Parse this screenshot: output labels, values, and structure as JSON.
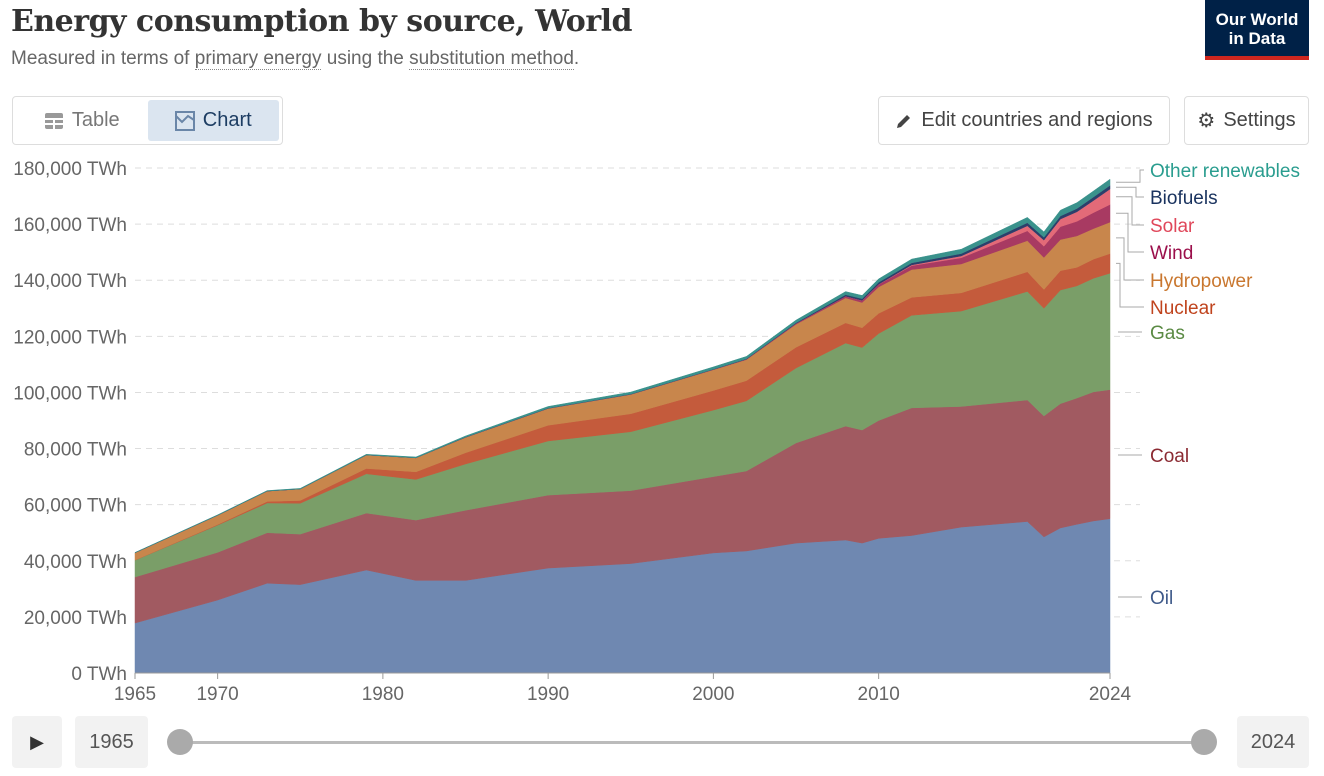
{
  "header": {
    "title": "Energy consumption by source, World",
    "subtitle_pre": "Measured in terms of ",
    "subtitle_link1": "primary energy",
    "subtitle_mid": " using the ",
    "subtitle_link2": "substitution method",
    "subtitle_post": ".",
    "logo_line1": "Our World",
    "logo_line2": "in Data"
  },
  "toolbar": {
    "table_label": "Table",
    "chart_label": "Chart",
    "edit_label": "Edit countries and regions",
    "settings_label": "Settings"
  },
  "timeline": {
    "start": "1965",
    "end": "2024"
  },
  "chart_data": {
    "type": "area",
    "stacked": true,
    "title": "Energy consumption by source, World",
    "ylabel": "",
    "xlabel": "",
    "ylim": [
      0,
      180000
    ],
    "yticks": [
      0,
      20000,
      40000,
      60000,
      80000,
      100000,
      120000,
      140000,
      160000,
      180000
    ],
    "ytick_labels": [
      "0 TWh",
      "20,000 TWh",
      "40,000 TWh",
      "60,000 TWh",
      "80,000 TWh",
      "100,000 TWh",
      "120,000 TWh",
      "140,000 TWh",
      "160,000 TWh",
      "180,000 TWh"
    ],
    "xticks": [
      "1965",
      "1970",
      "1980",
      "1990",
      "2000",
      "2010",
      "2024"
    ],
    "xlim": [
      1965,
      2024
    ],
    "grid": true,
    "legend_placement": "right",
    "x": [
      1965,
      1970,
      1973,
      1975,
      1979,
      1982,
      1985,
      1990,
      1995,
      2000,
      2002,
      2005,
      2008,
      2009,
      2010,
      2012,
      2015,
      2019,
      2020,
      2021,
      2022,
      2023,
      2024
    ],
    "series": [
      {
        "name": "Oil",
        "color": "#6f88b1",
        "label_color": "#3f5a8a",
        "values": [
          17800,
          26000,
          32000,
          31500,
          36700,
          33000,
          33000,
          37400,
          39000,
          42800,
          43500,
          46300,
          47400,
          46300,
          48000,
          49000,
          52000,
          54000,
          48500,
          51700,
          53000,
          54200,
          55000
        ]
      },
      {
        "name": "Coal",
        "color": "#a15a61",
        "label_color": "#8b2a32",
        "values": [
          16400,
          17000,
          18000,
          18000,
          20300,
          21500,
          25000,
          26000,
          26000,
          27200,
          28500,
          35700,
          40600,
          40300,
          42000,
          45500,
          43000,
          43300,
          43100,
          44300,
          45000,
          46000,
          46000
        ]
      },
      {
        "name": "Gas",
        "color": "#7a9e68",
        "label_color": "#5a8a43",
        "values": [
          6000,
          9700,
          10600,
          11000,
          14000,
          14500,
          16500,
          19300,
          21000,
          23700,
          25000,
          26700,
          29600,
          29400,
          31000,
          33000,
          34000,
          38700,
          38400,
          40500,
          40000,
          40500,
          41500
        ]
      },
      {
        "name": "Nuclear",
        "color": "#c45b3c",
        "label_color": "#c0441e",
        "values": [
          60,
          220,
          550,
          1000,
          1900,
          2700,
          4000,
          5600,
          6400,
          7000,
          7200,
          7400,
          7200,
          7050,
          7200,
          6400,
          6500,
          7000,
          6700,
          6900,
          6600,
          6800,
          7000
        ]
      },
      {
        "name": "Hydropower",
        "color": "#c8864c",
        "label_color": "#c9772f",
        "values": [
          2600,
          3300,
          3700,
          4100,
          4800,
          5000,
          5500,
          6000,
          6900,
          7400,
          7500,
          8200,
          8900,
          9000,
          9400,
          9900,
          10300,
          11100,
          11400,
          11100,
          11200,
          10900,
          11200
        ]
      },
      {
        "name": "Wind",
        "color": "#a83a62",
        "label_color": "#9b0f4b",
        "values": [
          0,
          0,
          0,
          0,
          0,
          0,
          0,
          0,
          20,
          80,
          140,
          270,
          570,
          720,
          900,
          1400,
          2200,
          3500,
          4000,
          4600,
          5200,
          5700,
          6300
        ]
      },
      {
        "name": "Solar",
        "color": "#e36a78",
        "label_color": "#e0475a",
        "values": [
          0,
          0,
          0,
          0,
          0,
          0,
          0,
          0,
          0,
          0,
          0,
          10,
          30,
          50,
          85,
          260,
          650,
          1800,
          2200,
          2700,
          3400,
          4300,
          5500
        ]
      },
      {
        "name": "Biofuels",
        "color": "#2c3f6b",
        "label_color": "#19325e",
        "values": [
          0,
          0,
          0,
          0,
          0,
          0,
          80,
          100,
          110,
          120,
          150,
          250,
          550,
          600,
          680,
          720,
          850,
          1100,
          1000,
          1100,
          1150,
          1250,
          1300
        ]
      },
      {
        "name": "Other renewables",
        "color": "#3a928c",
        "label_color": "#2a9d8f",
        "values": [
          100,
          150,
          170,
          200,
          250,
          300,
          400,
          600,
          700,
          800,
          850,
          950,
          1100,
          1150,
          1200,
          1350,
          1550,
          1900,
          1950,
          2050,
          2100,
          2150,
          2200
        ]
      }
    ]
  }
}
